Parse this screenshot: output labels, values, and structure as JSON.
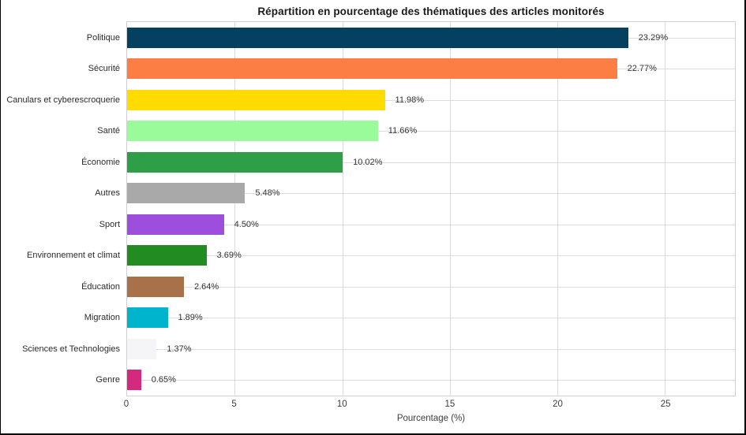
{
  "page": {
    "background": "#ffffff",
    "border_color": "#000000"
  },
  "chart_data": {
    "type": "bar",
    "orientation": "horizontal",
    "title": "Répartition en pourcentage des thématiques des articles monitorés",
    "xlabel": "Pourcentage (%)",
    "categories": [
      "Politique",
      "Sécurité",
      "Canulars et cyberescroquerie",
      "Santé",
      "Économie",
      "Autres",
      "Sport",
      "Environnement et climat",
      "Éducation",
      "Migration",
      "Sciences et Technologies",
      "Genre"
    ],
    "values": [
      23.29,
      22.77,
      11.98,
      11.66,
      10.02,
      5.48,
      4.5,
      3.69,
      2.64,
      1.89,
      1.37,
      0.65
    ],
    "value_labels": [
      "23.29%",
      "22.77%",
      "11.98%",
      "11.66%",
      "10.02%",
      "5.48%",
      "4.50%",
      "3.69%",
      "2.64%",
      "1.89%",
      "1.37%",
      "0.65%"
    ],
    "bar_colors": [
      "#04405f",
      "#fd7e45",
      "#ffdb00",
      "#99fb99",
      "#2f9e48",
      "#a9a9a9",
      "#9d4edd",
      "#228b22",
      "#a8714a",
      "#00b4cd",
      "#f5f5f8",
      "#d42a7d"
    ],
    "xticks": [
      "0",
      "5",
      "10",
      "15",
      "20",
      "25"
    ],
    "xtick_values": [
      0,
      5,
      10,
      15,
      20,
      25
    ],
    "xlim": [
      0,
      28.25
    ],
    "grid": true,
    "legend": false,
    "colors": {
      "grid": "#dcdcdc",
      "spine": "#d0d0d0",
      "title": "#1a1a1a",
      "tick_text": "#3c3c3c",
      "value_text": "#333333"
    }
  }
}
